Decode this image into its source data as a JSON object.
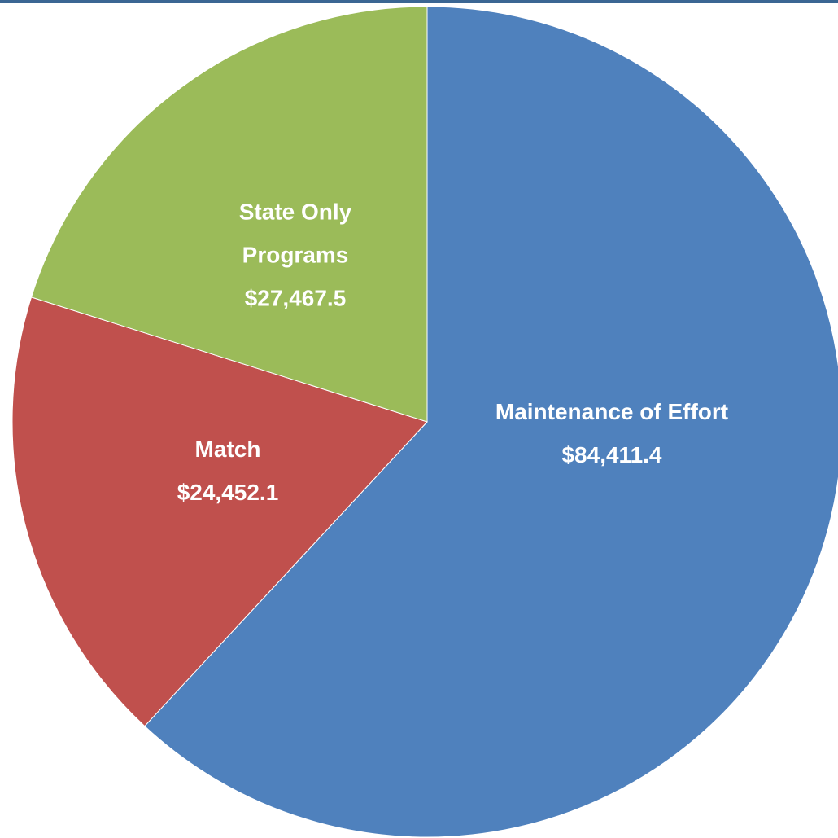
{
  "chart_data": {
    "type": "pie",
    "categories": [
      "Maintenance of Effort",
      "Match",
      "State Only Programs"
    ],
    "values": [
      84411.4,
      24452.1,
      27467.5
    ],
    "value_labels": [
      "$84,411.4",
      "$24,452.1",
      "$27,467.5"
    ],
    "colors": [
      "#4f81bd",
      "#c0504d",
      "#9bbb59"
    ]
  }
}
